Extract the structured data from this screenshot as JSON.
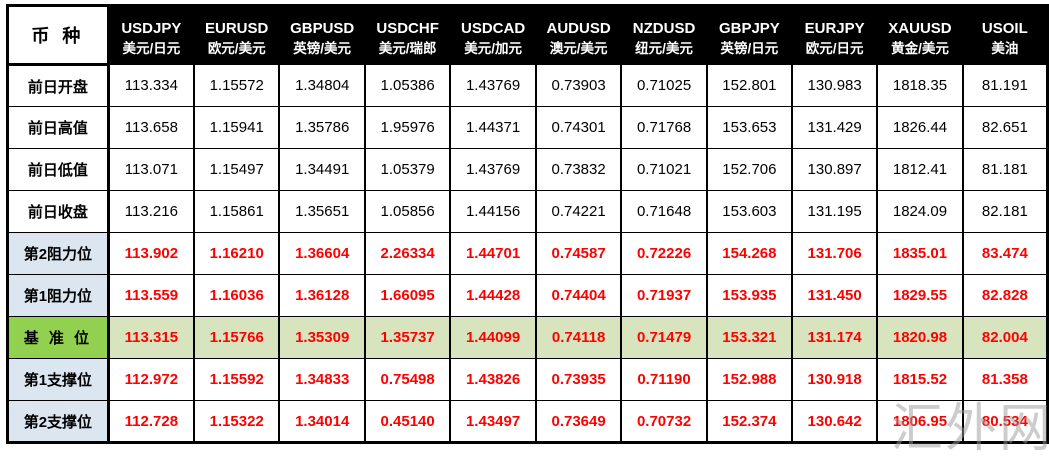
{
  "page": {
    "watermark": "汇外网"
  },
  "colors": {
    "header_bg": "#000000",
    "header_text": "#ffffff",
    "value_red": "#ff0000",
    "label_blue_bg": "#dce6f1",
    "pivot_label_green": "#92d050",
    "pivot_row_bg": "#d7e4bd",
    "grid_border": "#000000"
  },
  "chart_data": {
    "type": "table",
    "corner_label": "币 种",
    "columns": [
      {
        "symbol": "USDJPY",
        "name_cn": "美元/日元"
      },
      {
        "symbol": "EURUSD",
        "name_cn": "欧元/美元"
      },
      {
        "symbol": "GBPUSD",
        "name_cn": "英镑/美元"
      },
      {
        "symbol": "USDCHF",
        "name_cn": "美元/瑞郎"
      },
      {
        "symbol": "USDCAD",
        "name_cn": "美元/加元"
      },
      {
        "symbol": "AUDUSD",
        "name_cn": "澳元/美元"
      },
      {
        "symbol": "NZDUSD",
        "name_cn": "纽元/美元"
      },
      {
        "symbol": "GBPJPY",
        "name_cn": "英镑/日元"
      },
      {
        "symbol": "EURJPY",
        "name_cn": "欧元/日元"
      },
      {
        "symbol": "XAUUSD",
        "name_cn": "黄金/美元"
      },
      {
        "symbol": "USOIL",
        "name_cn": "美油"
      }
    ],
    "rows": [
      {
        "label": "前日开盘",
        "style": "plain",
        "values": [
          "113.334",
          "1.15572",
          "1.34804",
          "1.05386",
          "1.43769",
          "0.73903",
          "0.71025",
          "152.801",
          "130.983",
          "1818.35",
          "81.191"
        ]
      },
      {
        "label": "前日高值",
        "style": "plain",
        "values": [
          "113.658",
          "1.15941",
          "1.35786",
          "1.95976",
          "1.44371",
          "0.74301",
          "0.71768",
          "153.653",
          "131.429",
          "1826.44",
          "82.651"
        ]
      },
      {
        "label": "前日低值",
        "style": "plain",
        "values": [
          "113.071",
          "1.15497",
          "1.34491",
          "1.05379",
          "1.43769",
          "0.73832",
          "0.71021",
          "152.706",
          "130.897",
          "1812.41",
          "81.181"
        ]
      },
      {
        "label": "前日收盘",
        "style": "plain",
        "values": [
          "113.216",
          "1.15861",
          "1.35651",
          "1.05856",
          "1.44156",
          "0.74221",
          "0.71648",
          "153.603",
          "131.195",
          "1824.09",
          "82.181"
        ]
      },
      {
        "label": "第2阻力位",
        "style": "level",
        "values": [
          "113.902",
          "1.16210",
          "1.36604",
          "2.26334",
          "1.44701",
          "0.74587",
          "0.72226",
          "154.268",
          "131.706",
          "1835.01",
          "83.474"
        ]
      },
      {
        "label": "第1阻力位",
        "style": "level",
        "values": [
          "113.559",
          "1.16036",
          "1.36128",
          "1.66095",
          "1.44428",
          "0.74404",
          "0.71937",
          "153.935",
          "131.450",
          "1829.55",
          "82.828"
        ]
      },
      {
        "label": "基 准 位",
        "style": "pivot",
        "values": [
          "113.315",
          "1.15766",
          "1.35309",
          "1.35737",
          "1.44099",
          "0.74118",
          "0.71479",
          "153.321",
          "131.174",
          "1820.98",
          "82.004"
        ]
      },
      {
        "label": "第1支撑位",
        "style": "level",
        "values": [
          "112.972",
          "1.15592",
          "1.34833",
          "0.75498",
          "1.43826",
          "0.73935",
          "0.71190",
          "152.988",
          "130.918",
          "1815.52",
          "81.358"
        ]
      },
      {
        "label": "第2支撑位",
        "style": "level",
        "values": [
          "112.728",
          "1.15322",
          "1.34014",
          "0.45140",
          "1.43497",
          "0.73649",
          "0.70732",
          "152.374",
          "130.642",
          "1806.95",
          "80.534"
        ]
      }
    ]
  }
}
